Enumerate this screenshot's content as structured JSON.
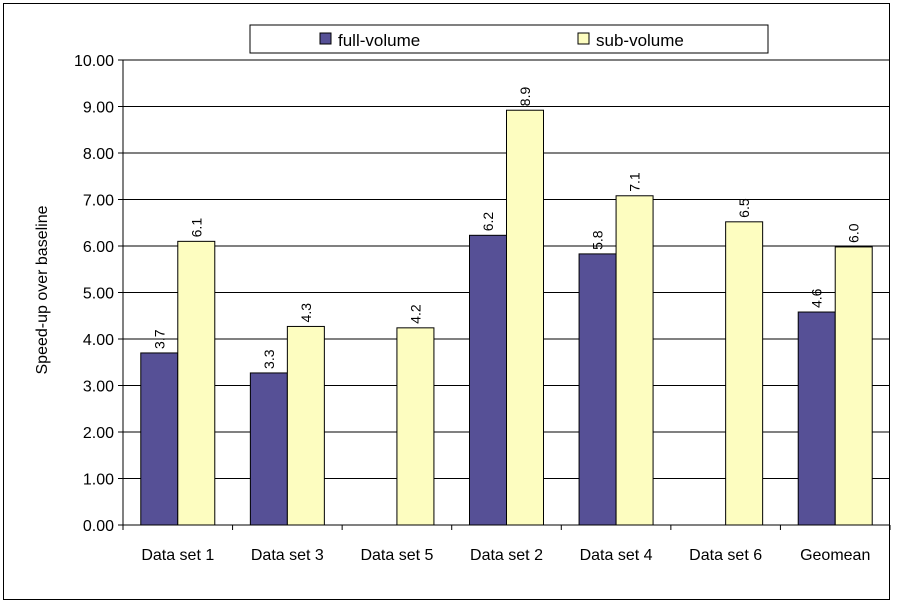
{
  "chart_data": {
    "type": "bar",
    "title": "",
    "xlabel": "",
    "ylabel": "Speed-up over baseline",
    "ylim": [
      0,
      10
    ],
    "yticks": [
      "0.00",
      "1.00",
      "2.00",
      "3.00",
      "4.00",
      "5.00",
      "6.00",
      "7.00",
      "8.00",
      "9.00",
      "10.00"
    ],
    "categories": [
      "Data set 1",
      "Data set 3",
      "Data set 5",
      "Data set 2",
      "Data set 4",
      "Data set 6",
      "Geomean"
    ],
    "series": [
      {
        "name": "full-volume",
        "color": "#565096",
        "values": [
          3.7,
          3.27,
          null,
          6.23,
          5.83,
          null,
          4.58
        ],
        "labels": [
          "3.7",
          "3.3",
          "",
          "6.2",
          "5.8",
          "",
          "4.6"
        ]
      },
      {
        "name": "sub-volume",
        "color": "#fdfdc0",
        "values": [
          6.1,
          4.27,
          4.24,
          8.92,
          7.08,
          6.52,
          5.98
        ],
        "labels": [
          "6.1",
          "4.3",
          "4.2",
          "8.9",
          "7.1",
          "6.5",
          "6.0"
        ]
      }
    ],
    "grid": true,
    "legend_position": "top"
  }
}
